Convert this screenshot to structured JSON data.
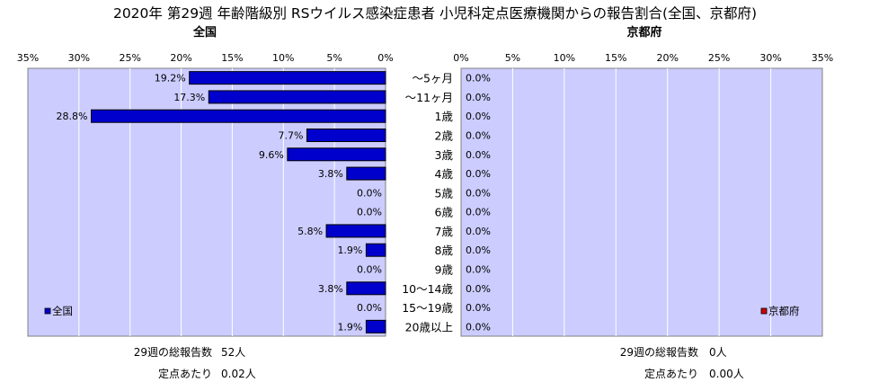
{
  "title": "2020年 第29週 年齢階級別 RSウイルス感染症患者 小児科定点医療機関からの報告割合(全国、京都府)",
  "colors": {
    "plot_bg": "#ccccff",
    "bar_fill": "#0000cc",
    "bar_stroke": "#000000",
    "grid": "#ffffff",
    "legend_national": "#0000cc",
    "legend_kyoto": "#cc0000"
  },
  "chart_data": [
    {
      "type": "bar",
      "orientation": "horizontal",
      "direction": "right-to-left",
      "title": "全国",
      "categories": [
        "～5ヶ月",
        "～11ヶ月",
        "1歳",
        "2歳",
        "3歳",
        "4歳",
        "5歳",
        "6歳",
        "7歳",
        "8歳",
        "9歳",
        "10～14歳",
        "15～19歳",
        "20歳以上"
      ],
      "series": [
        {
          "name": "全国",
          "values": [
            19.2,
            17.3,
            28.8,
            7.7,
            9.6,
            3.8,
            0.0,
            0.0,
            5.8,
            1.9,
            0.0,
            3.8,
            0.0,
            1.9
          ]
        }
      ],
      "xlim": [
        0,
        35
      ],
      "ticks": [
        35,
        30,
        25,
        20,
        15,
        10,
        5,
        0
      ],
      "tick_labels": [
        "35%",
        "30%",
        "25%",
        "20%",
        "15%",
        "10%",
        "5%",
        "0%"
      ],
      "data_labels": [
        "19.2%",
        "17.3%",
        "28.8%",
        "7.7%",
        "9.6%",
        "3.8%",
        "0.0%",
        "0.0%",
        "5.8%",
        "1.9%",
        "0.0%",
        "3.8%",
        "0.0%",
        "1.9%"
      ],
      "legend": "bottom-left",
      "grid": true
    },
    {
      "type": "bar",
      "orientation": "horizontal",
      "direction": "left-to-right",
      "title": "京都府",
      "categories": [
        "～5ヶ月",
        "～11ヶ月",
        "1歳",
        "2歳",
        "3歳",
        "4歳",
        "5歳",
        "6歳",
        "7歳",
        "8歳",
        "9歳",
        "10～14歳",
        "15～19歳",
        "20歳以上"
      ],
      "series": [
        {
          "name": "京都府",
          "values": [
            0,
            0,
            0,
            0,
            0,
            0,
            0,
            0,
            0,
            0,
            0,
            0,
            0,
            0
          ]
        }
      ],
      "xlim": [
        0,
        35
      ],
      "ticks": [
        0,
        5,
        10,
        15,
        20,
        25,
        30,
        35
      ],
      "tick_labels": [
        "0%",
        "5%",
        "10%",
        "15%",
        "20%",
        "25%",
        "30%",
        "35%"
      ],
      "data_labels": [
        "0.0%",
        "0.0%",
        "0.0%",
        "0.0%",
        "0.0%",
        "0.0%",
        "0.0%",
        "0.0%",
        "0.0%",
        "0.0%",
        "0.0%",
        "0.0%",
        "0.0%",
        "0.0%"
      ],
      "legend": "bottom-right",
      "grid": true
    }
  ],
  "footer": {
    "national": {
      "total_label": "29週の総報告数",
      "total_value": "52人",
      "per_site_label": "定点あたり",
      "per_site_value": "0.02人"
    },
    "kyoto": {
      "total_label": "29週の総報告数",
      "total_value": "0人",
      "per_site_label": "定点あたり",
      "per_site_value": "0.00人"
    }
  }
}
